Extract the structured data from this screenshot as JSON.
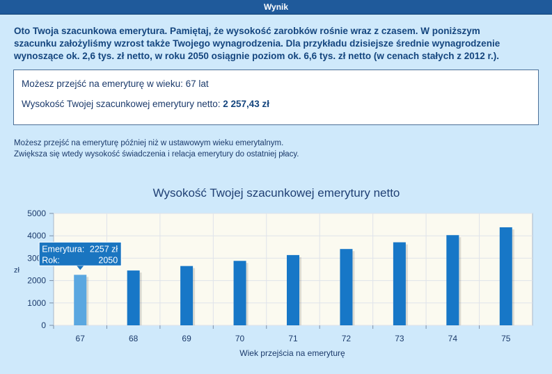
{
  "header": {
    "title": "Wynik"
  },
  "intro": {
    "lines": [
      "Oto Twoja szacunkowa emerytura. Pamiętaj, że wysokość zarobków rośnie wraz z czasem. W poniższym",
      "szacunku założyliśmy wzrost także Twojego wynagrodzenia. Dla przykładu dzisiejsze średnie wynagrodzenie",
      "wynoszące ok. 2,6 tys. zł netto, w roku 2050 osiągnie poziom ok. 6,6 tys. zł netto (w cenach stałych z 2012 r.)."
    ]
  },
  "result": {
    "age_label": "Możesz przejść na emeryturę w wieku: 67 lat",
    "pension_label": "Wysokość Twojej szacunkowej emerytury netto: ",
    "pension_value": "2 257,43 zł"
  },
  "note": {
    "lines": [
      "Możesz przejść na emeryturę później niż w ustawowym wieku emerytalnym.",
      "Zwiększa się wtedy wysokość świadczenia i relacja emerytury do ostatniej płacy."
    ]
  },
  "chart_data": {
    "type": "bar",
    "title": "Wysokość Twojej szacunkowej emerytury netto",
    "xlabel": "Wiek przejścia na emeryturę",
    "ylabel": "zł",
    "categories": [
      "67",
      "68",
      "69",
      "70",
      "71",
      "72",
      "73",
      "74",
      "75"
    ],
    "values": [
      2257,
      2450,
      2650,
      2880,
      3140,
      3410,
      3710,
      4030,
      4380
    ],
    "ylim": [
      0,
      5000
    ],
    "yticks": [
      0,
      1000,
      2000,
      3000,
      4000,
      5000
    ],
    "grid": true,
    "colors": {
      "bar": "#1777c7",
      "bar_highlight": "#5aa7e0",
      "plot_bg": "#fbfaf0",
      "grid": "#dfe3ea"
    },
    "tooltip": {
      "category_index": 0,
      "line1_label": "Emerytura:",
      "line1_value": "2257 zł",
      "line2_label": "Rok:",
      "line2_value": "2050"
    }
  }
}
